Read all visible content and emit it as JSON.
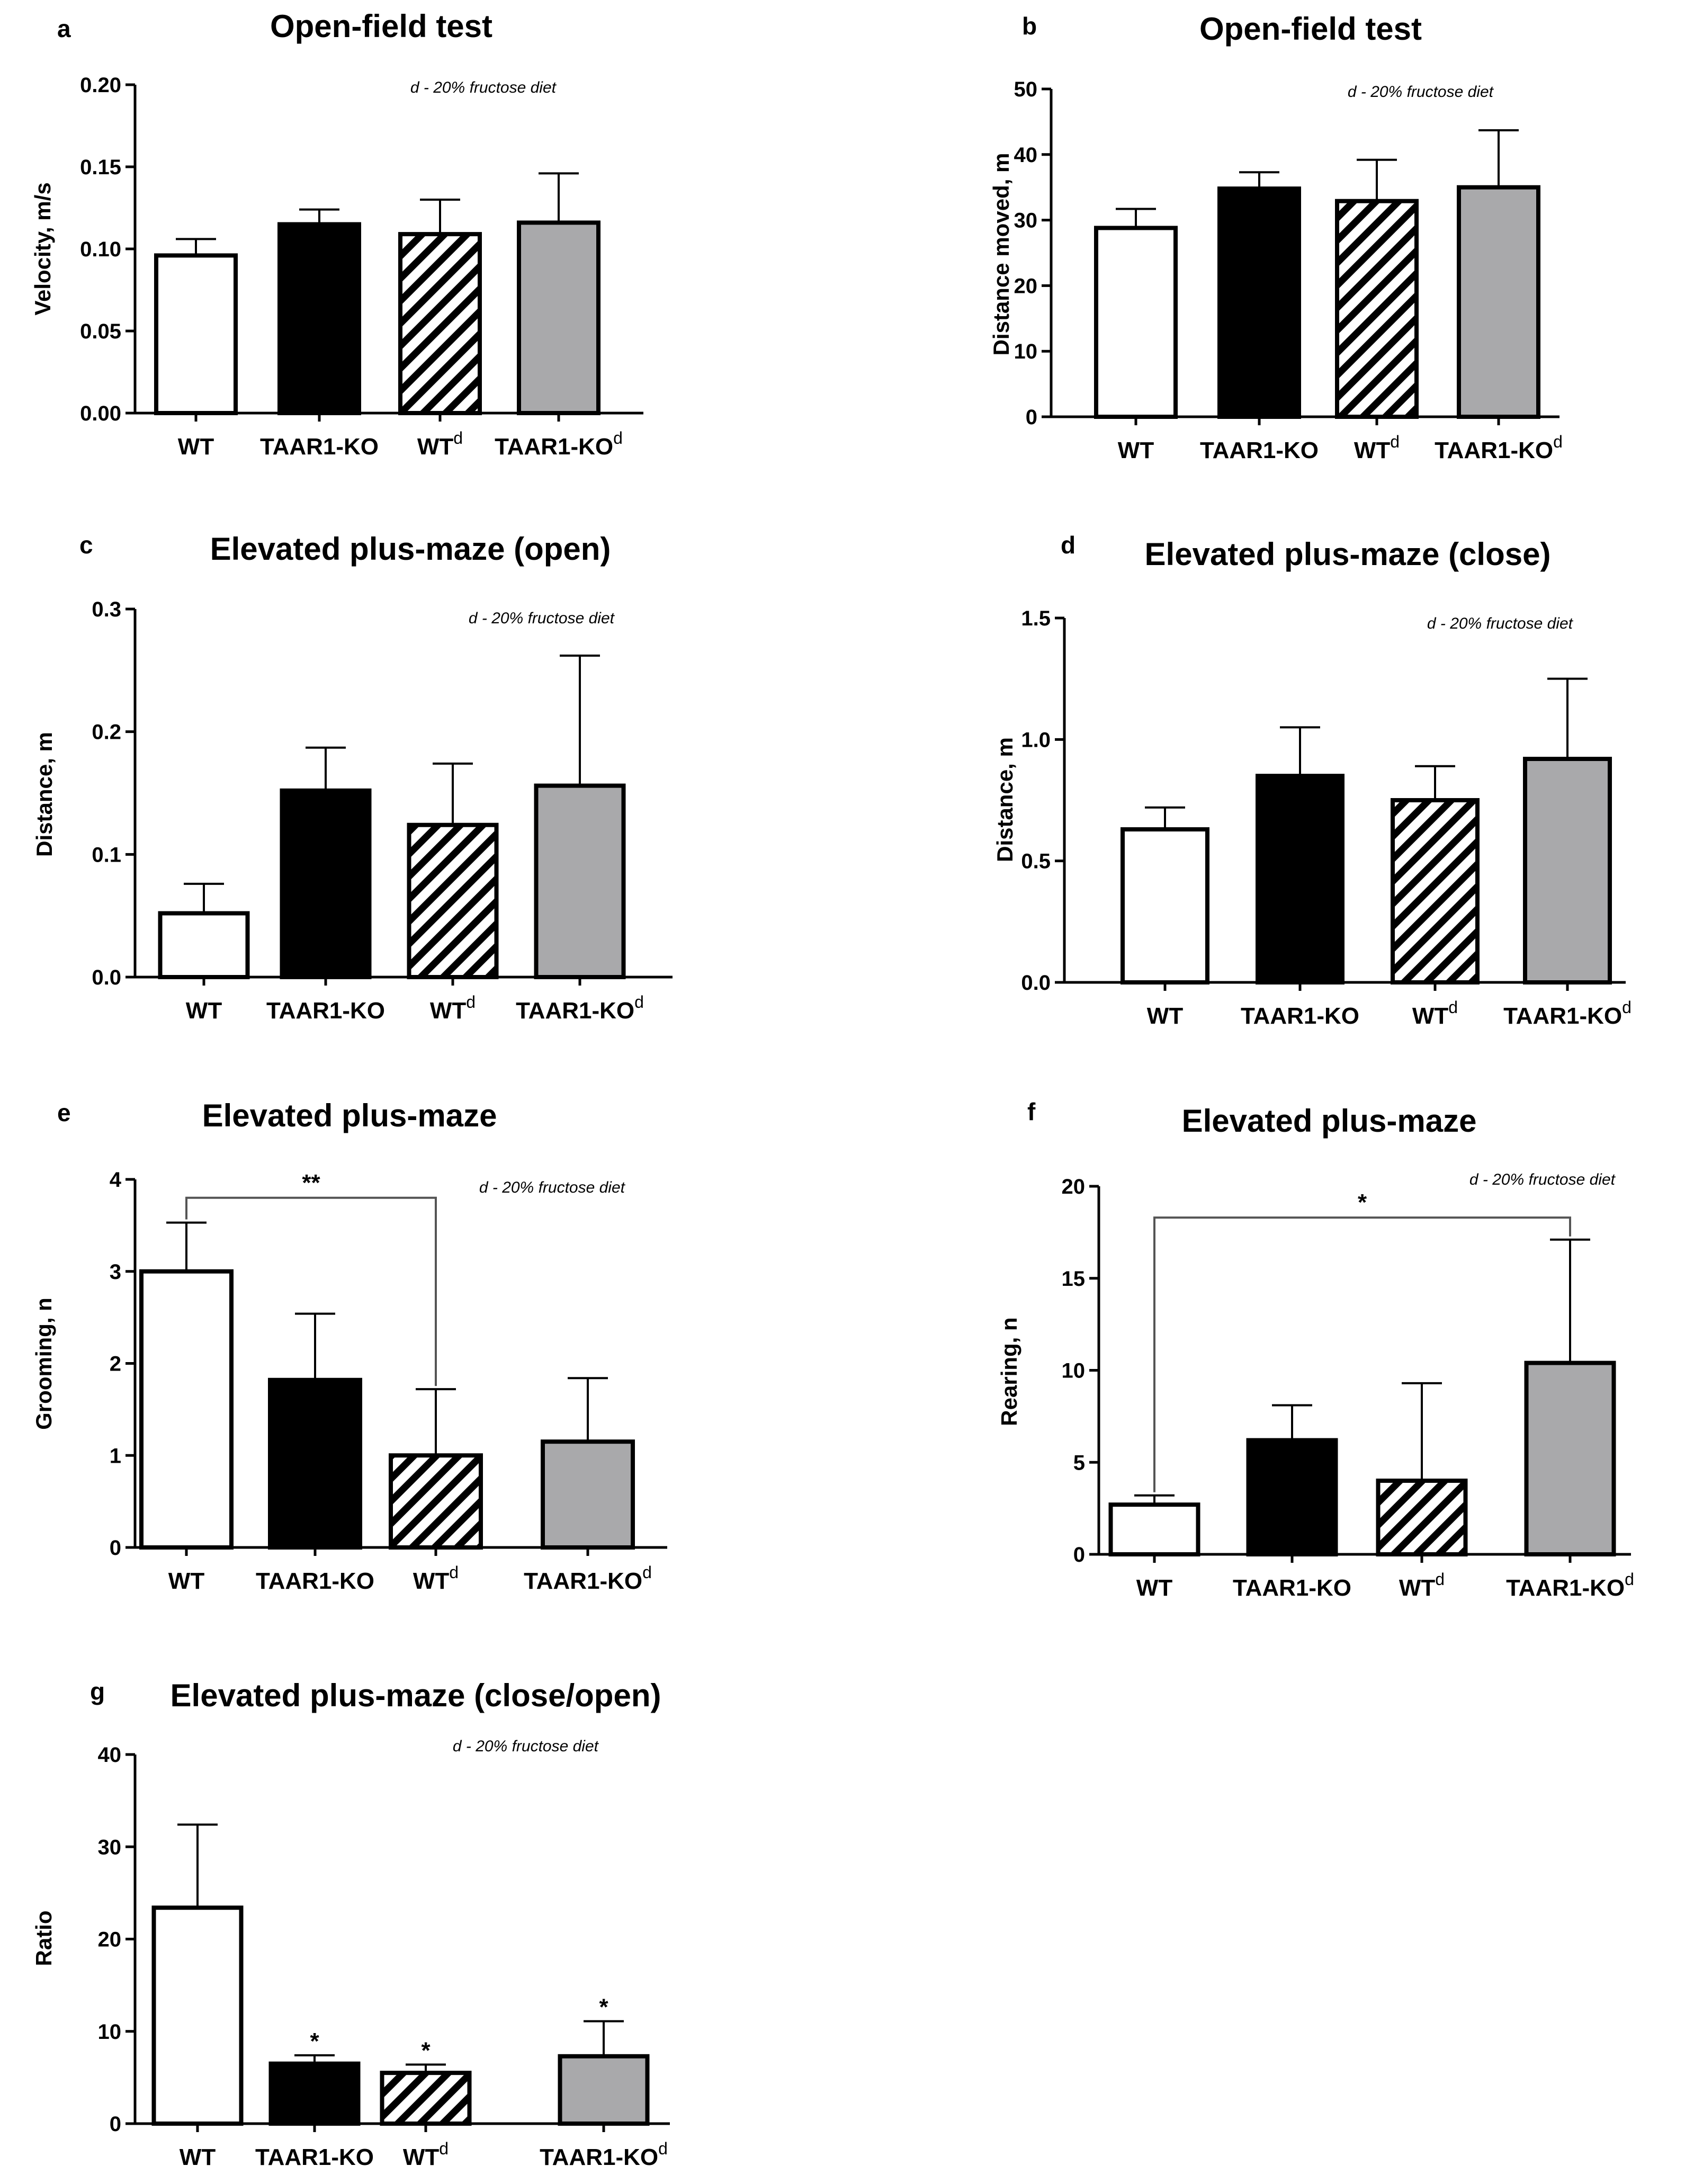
{
  "figure_note": "d - 20% fructose diet",
  "colors": {
    "wt": "#ffffff",
    "ko": "#000000",
    "wt_d": "hatched",
    "ko_d": "#a9a9ab",
    "stroke": "#000000"
  },
  "chart_data": [
    {
      "panel": "a",
      "type": "bar",
      "title": "Open-field test",
      "ylabel": "Velocity, m/s",
      "ylim": [
        0,
        0.2
      ],
      "ticks": [
        "0.00",
        "0.05",
        "0.10",
        "0.15",
        "0.20"
      ],
      "categories": [
        {
          "base": "WT",
          "sup": ""
        },
        {
          "base": "TAAR1-KO",
          "sup": ""
        },
        {
          "base": "WT",
          "sup": "d"
        },
        {
          "base": "TAAR1-KO",
          "sup": "d"
        }
      ],
      "values": [
        0.096,
        0.115,
        0.109,
        0.116
      ],
      "errors": [
        0.01,
        0.009,
        0.021,
        0.03
      ],
      "note": "d - 20% fructose diet",
      "brackets": [],
      "bar_stars": []
    },
    {
      "panel": "b",
      "type": "bar",
      "title": "Open-field test",
      "ylabel": "Distance moved, m",
      "ylim": [
        0,
        50
      ],
      "ticks": [
        "0",
        "10",
        "20",
        "30",
        "40",
        "50"
      ],
      "categories": [
        {
          "base": "WT",
          "sup": ""
        },
        {
          "base": "TAAR1-KO",
          "sup": ""
        },
        {
          "base": "WT",
          "sup": "d"
        },
        {
          "base": "TAAR1-KO",
          "sup": "d"
        }
      ],
      "values": [
        28.8,
        34.8,
        32.9,
        35.0
      ],
      "errors": [
        2.9,
        2.5,
        6.3,
        8.7
      ],
      "note": "d - 20% fructose diet",
      "brackets": [],
      "bar_stars": []
    },
    {
      "panel": "c",
      "type": "bar",
      "title": "Elevated plus-maze (open)",
      "ylabel": "Distance, m",
      "ylim": [
        0,
        0.3
      ],
      "ticks": [
        "0.0",
        "0.1",
        "0.2",
        "0.3"
      ],
      "categories": [
        {
          "base": "WT",
          "sup": ""
        },
        {
          "base": "TAAR1-KO",
          "sup": ""
        },
        {
          "base": "WT",
          "sup": "d"
        },
        {
          "base": "TAAR1-KO",
          "sup": "d"
        }
      ],
      "values": [
        0.052,
        0.152,
        0.124,
        0.156
      ],
      "errors": [
        0.024,
        0.035,
        0.05,
        0.106
      ],
      "note": "d - 20% fructose diet",
      "brackets": [],
      "bar_stars": []
    },
    {
      "panel": "d",
      "type": "bar",
      "title": "Elevated plus-maze (close)",
      "ylabel": "Distance, m",
      "ylim": [
        0,
        1.5
      ],
      "ticks": [
        "0.0",
        "0.5",
        "1.0",
        "1.5"
      ],
      "categories": [
        {
          "base": "WT",
          "sup": ""
        },
        {
          "base": "TAAR1-KO",
          "sup": ""
        },
        {
          "base": "WT",
          "sup": "d"
        },
        {
          "base": "TAAR1-KO",
          "sup": "d"
        }
      ],
      "values": [
        0.63,
        0.85,
        0.75,
        0.92
      ],
      "errors": [
        0.09,
        0.2,
        0.14,
        0.33
      ],
      "note": "d - 20% fructose diet",
      "brackets": [],
      "bar_stars": []
    },
    {
      "panel": "e",
      "type": "bar",
      "title": "Elevated plus-maze",
      "ylabel": "Grooming, n",
      "ylim": [
        0,
        4
      ],
      "ticks": [
        "0",
        "1",
        "2",
        "3",
        "4"
      ],
      "categories": [
        {
          "base": "WT",
          "sup": ""
        },
        {
          "base": "TAAR1-KO",
          "sup": ""
        },
        {
          "base": "WT",
          "sup": "d"
        },
        {
          "base": "TAAR1-KO",
          "sup": "d"
        }
      ],
      "values": [
        3.0,
        1.82,
        1.0,
        1.15
      ],
      "errors": [
        0.53,
        0.72,
        0.72,
        0.69
      ],
      "note": "d - 20% fructose diet",
      "brackets": [
        {
          "from": 0,
          "to": 2,
          "y": 3.8,
          "label": "**"
        }
      ],
      "bar_stars": []
    },
    {
      "panel": "f",
      "type": "bar",
      "title": "Elevated plus-maze",
      "ylabel": "Rearing, n",
      "ylim": [
        0,
        20
      ],
      "ticks": [
        "0",
        "5",
        "10",
        "15",
        "20"
      ],
      "categories": [
        {
          "base": "WT",
          "sup": ""
        },
        {
          "base": "TAAR1-KO",
          "sup": ""
        },
        {
          "base": "WT",
          "sup": "d"
        },
        {
          "base": "TAAR1-KO",
          "sup": "d"
        }
      ],
      "values": [
        2.7,
        6.2,
        4.0,
        10.4
      ],
      "errors": [
        0.5,
        1.9,
        5.3,
        6.7
      ],
      "note": "d - 20% fructose diet",
      "brackets": [
        {
          "from": 0,
          "to": 3,
          "y": 18.3,
          "label": "*"
        }
      ],
      "bar_stars": []
    },
    {
      "panel": "g",
      "type": "bar",
      "title": "Elevated plus-maze (close/open)",
      "ylabel": "Ratio",
      "ylim": [
        0,
        40
      ],
      "ticks": [
        "0",
        "10",
        "20",
        "30",
        "40"
      ],
      "categories": [
        {
          "base": "WT",
          "sup": ""
        },
        {
          "base": "TAAR1-KO",
          "sup": ""
        },
        {
          "base": "WT",
          "sup": "d"
        },
        {
          "base": "TAAR1-KO",
          "sup": "d"
        }
      ],
      "values": [
        23.4,
        6.5,
        5.5,
        7.3
      ],
      "errors": [
        9.0,
        0.9,
        0.9,
        3.8
      ],
      "note": "d - 20% fructose diet",
      "brackets": [],
      "bar_stars": [
        "",
        "*",
        "*",
        "*"
      ]
    }
  ]
}
